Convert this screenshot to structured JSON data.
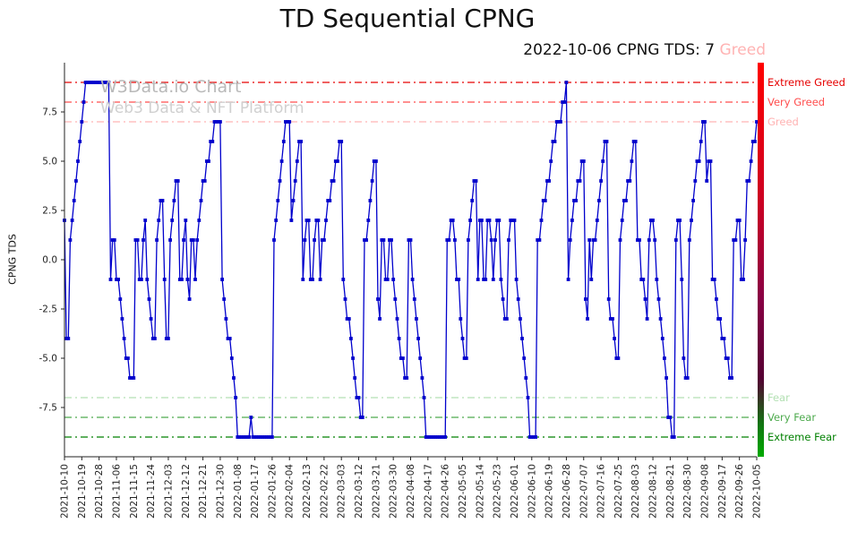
{
  "title": "TD Sequential CPNG",
  "subtitle": {
    "prefix": "2022-10-06 CPNG TDS: 7 ",
    "status": "Greed",
    "status_color": "#ffb3b3"
  },
  "watermark": {
    "line1": "W3Data.io Chart",
    "line2": "Web3 Data & NFT Platform"
  },
  "chart_data": {
    "type": "line",
    "title": "TD Sequential CPNG",
    "xlabel": "",
    "ylabel": "CPNG TDS",
    "ylim": [
      -10,
      10
    ],
    "yticks": [
      -7.5,
      -5.0,
      -2.5,
      0.0,
      2.5,
      5.0,
      7.5
    ],
    "line_color": "#0000cc",
    "marker": "square",
    "grid": false,
    "legend": "none",
    "start_date": "2021-10-10",
    "end_date": "2022-10-05",
    "frequency": "daily",
    "x_tick_interval_days": 9,
    "x_tick_labels": [
      "2021-10-10",
      "2021-10-19",
      "2021-10-28",
      "2021-11-06",
      "2021-11-15",
      "2021-11-24",
      "2021-12-03",
      "2021-12-12",
      "2021-12-21",
      "2021-12-30",
      "2022-01-08",
      "2022-01-17",
      "2022-01-26",
      "2022-02-04",
      "2022-02-13",
      "2022-02-22",
      "2022-03-03",
      "2022-03-12",
      "2022-03-21",
      "2022-03-30",
      "2022-04-08",
      "2022-04-17",
      "2022-04-26",
      "2022-05-05",
      "2022-05-14",
      "2022-05-23",
      "2022-06-01",
      "2022-06-10",
      "2022-06-19",
      "2022-06-28",
      "2022-07-07",
      "2022-07-16",
      "2022-07-25",
      "2022-08-03",
      "2022-08-12",
      "2022-08-21",
      "2022-08-30",
      "2022-09-08",
      "2022-09-17",
      "2022-09-26",
      "2022-10-05"
    ],
    "series": [
      {
        "name": "CPNG TDS",
        "values": [
          2,
          -4,
          -4,
          1,
          2,
          3,
          4,
          5,
          6,
          7,
          8,
          9,
          9,
          9,
          9,
          9,
          9,
          9,
          9,
          9,
          9,
          9,
          9,
          9,
          -1,
          1,
          1,
          -1,
          -1,
          -2,
          -3,
          -4,
          -5,
          -5,
          -6,
          -6,
          -6,
          1,
          1,
          -1,
          -1,
          1,
          2,
          -1,
          -2,
          -3,
          -4,
          -4,
          1,
          2,
          3,
          3,
          -1,
          -4,
          -4,
          1,
          2,
          3,
          4,
          4,
          -1,
          -1,
          1,
          2,
          -1,
          -2,
          1,
          1,
          -1,
          1,
          2,
          3,
          4,
          4,
          5,
          5,
          6,
          6,
          7,
          7,
          7,
          7,
          -1,
          -2,
          -3,
          -4,
          -4,
          -5,
          -6,
          -7,
          -9,
          -9,
          -9,
          -9,
          -9,
          -9,
          -9,
          -8,
          -9,
          -9,
          -9,
          -9,
          -9,
          -9,
          -9,
          -9,
          -9,
          -9,
          -9,
          1,
          2,
          3,
          4,
          5,
          6,
          7,
          7,
          7,
          2,
          3,
          4,
          5,
          6,
          6,
          -1,
          1,
          2,
          2,
          -1,
          -1,
          1,
          2,
          2,
          -1,
          1,
          1,
          2,
          3,
          3,
          4,
          4,
          5,
          5,
          6,
          6,
          -1,
          -2,
          -3,
          -3,
          -4,
          -5,
          -6,
          -7,
          -7,
          -8,
          -8,
          1,
          1,
          2,
          3,
          4,
          5,
          5,
          -2,
          -3,
          1,
          1,
          -1,
          -1,
          1,
          1,
          -1,
          -2,
          -3,
          -4,
          -5,
          -5,
          -6,
          -6,
          1,
          1,
          -1,
          -2,
          -3,
          -4,
          -5,
          -6,
          -7,
          -9,
          -9,
          -9,
          -9,
          -9,
          -9,
          -9,
          -9,
          -9,
          -9,
          -9,
          1,
          1,
          2,
          2,
          1,
          -1,
          -1,
          -3,
          -4,
          -5,
          -5,
          1,
          2,
          3,
          4,
          4,
          -1,
          2,
          2,
          -1,
          -1,
          2,
          2,
          1,
          -1,
          1,
          2,
          2,
          -1,
          -2,
          -3,
          -3,
          1,
          2,
          2,
          2,
          -1,
          -2,
          -3,
          -4,
          -5,
          -6,
          -7,
          -9,
          -9,
          -9,
          -9,
          1,
          1,
          2,
          3,
          3,
          4,
          4,
          5,
          6,
          6,
          7,
          7,
          7,
          8,
          8,
          9,
          -1,
          1,
          2,
          3,
          3,
          4,
          4,
          5,
          5,
          -2,
          -3,
          1,
          -1,
          1,
          1,
          2,
          3,
          4,
          5,
          6,
          6,
          -2,
          -3,
          -3,
          -4,
          -5,
          -5,
          1,
          2,
          3,
          3,
          4,
          4,
          5,
          6,
          6,
          1,
          1,
          -1,
          -1,
          -2,
          -3,
          1,
          2,
          2,
          1,
          -1,
          -2,
          -3,
          -4,
          -5,
          -6,
          -8,
          -8,
          -9,
          -9,
          1,
          2,
          2,
          -1,
          -5,
          -6,
          -6,
          1,
          2,
          3,
          4,
          5,
          5,
          6,
          7,
          7,
          4,
          5,
          5,
          -1,
          -1,
          -2,
          -3,
          -3,
          -4,
          -4,
          -5,
          -5,
          -6,
          -6,
          1,
          1,
          2,
          2,
          -1,
          -1,
          1,
          4,
          4,
          5,
          6,
          6,
          7
        ]
      }
    ],
    "thresholds": [
      {
        "value": 9,
        "label": "Extreme Greed",
        "color": "#e60000"
      },
      {
        "value": 8,
        "label": "Very Greed",
        "color": "#ff4d4d"
      },
      {
        "value": 7,
        "label": "Greed",
        "color": "#ffb3b3"
      },
      {
        "value": -7,
        "label": "Fear",
        "color": "#b3e0b3"
      },
      {
        "value": -8,
        "label": "Very Fear",
        "color": "#4daa4d"
      },
      {
        "value": -9,
        "label": "Extreme Fear",
        "color": "#008000"
      }
    ],
    "colorbar": {
      "stops": [
        {
          "offset": 0.0,
          "color": "#ff0000"
        },
        {
          "offset": 0.35,
          "color": "#cc0022"
        },
        {
          "offset": 0.6,
          "color": "#880044"
        },
        {
          "offset": 0.8,
          "color": "#550033"
        },
        {
          "offset": 0.92,
          "color": "#117711"
        },
        {
          "offset": 1.0,
          "color": "#00aa00"
        }
      ]
    }
  }
}
